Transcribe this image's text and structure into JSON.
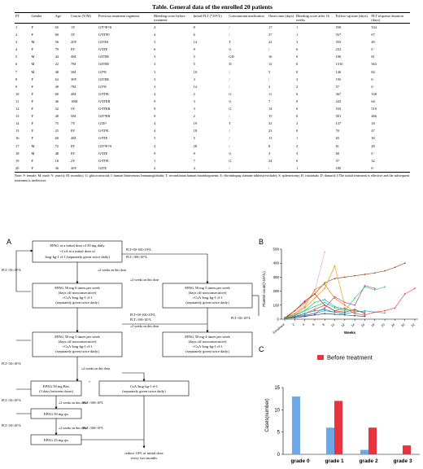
{
  "table": {
    "title": "Table. General data of the enrolled 20 patients",
    "headers": [
      "PT",
      "Gender",
      "Age",
      "Course (Y/M)",
      "Previous treatment regimens",
      "Bleeding score before treatment",
      "Initial PLT (*10⁹/L)",
      "Concomitant medication",
      "Onset time (days)",
      "Bleeding score after 16 weeks",
      "Follow-up time (days)",
      "PLT response duration (days)"
    ],
    "rows": [
      [
        "1",
        "F",
        "65",
        "1Y",
        "G²T²E²/S",
        "4",
        "8",
        "/",
        "17",
        "1",
        "550",
        "534"
      ],
      [
        "2",
        "F",
        "69",
        "3Y",
        "G²IT²E³",
        "4",
        "6",
        "/",
        "37",
        "1",
        "557",
        "67"
      ],
      [
        "3",
        "M",
        "56",
        "20Y",
        "GITES",
        "3",
        "14",
        "T",
        "22",
        "3",
        "555",
        "49"
      ],
      [
        "4",
        "F",
        "79",
        "8Y",
        "G²ITE",
        "6",
        "9",
        "G",
        "/",
        "6",
        "232",
        "0"
      ],
      [
        "5",
        "M",
        "44",
        "4M",
        "GITER",
        "3",
        "5",
        "GD",
        "16",
        "0",
        "100",
        "81"
      ],
      [
        "6",
        "M",
        "22",
        "7M",
        "GITER",
        "3",
        "5",
        "D",
        "12",
        "0",
        "1310",
        "563"
      ],
      [
        "7",
        "M",
        "48",
        "3M",
        "GT²E",
        "3",
        "10",
        "/",
        "5",
        "0",
        "140",
        "84"
      ],
      [
        "8",
        "F",
        "63",
        "30Y",
        "GITER",
        "3",
        "3",
        "/",
        "/",
        "3",
        "195",
        "0"
      ],
      [
        "9",
        "F",
        "49",
        "7M",
        "GT²E",
        "3",
        "14",
        "/",
        "3",
        "2",
        "57",
        "0"
      ],
      [
        "10",
        "F",
        "60",
        "4M",
        "G²IT²E",
        "4",
        "2",
        "G",
        "11",
        "0",
        "367",
        "338"
      ],
      [
        "11",
        "F",
        "46",
        "10M",
        "G²ITER",
        "9",
        "3",
        "G",
        "7",
        "0",
        "243",
        "64"
      ],
      [
        "12",
        "F",
        "32",
        "5Y",
        "G²ITER",
        "9",
        "3",
        "G",
        "14",
        "0",
        "535",
        "519"
      ],
      [
        "13",
        "F",
        "40",
        "5M",
        "GIT²ER",
        "9",
        "2",
        "/",
        "15",
        "0",
        "501",
        "466"
      ],
      [
        "14",
        "F",
        "75",
        "7Y",
        "GTE²",
        "4",
        "19",
        "T",
        "33",
        "3",
        "137",
        "18"
      ],
      [
        "15",
        "F",
        "25",
        "8Y",
        "G²IT³E",
        "4",
        "18",
        "/",
        "23",
        "0",
        "70",
        "47"
      ],
      [
        "16",
        "F",
        "60",
        "4M",
        "G²ITE",
        "5",
        "5",
        "/",
        "13",
        "1",
        "65",
        "30"
      ],
      [
        "17",
        "M",
        "72",
        "8Y",
        "GIT²E³/S",
        "2",
        "28",
        "/",
        "8",
        "2",
        "61",
        "28"
      ],
      [
        "18",
        "M",
        "48",
        "8Y",
        "G²ITE",
        "9",
        "9",
        "G",
        "3",
        "3",
        "60",
        "0"
      ],
      [
        "19",
        "F",
        "18",
        "2Y",
        "G²IT²E",
        "1",
        "7",
        "G",
        "24",
        "0",
        "57",
        "32"
      ],
      [
        "20",
        "F",
        "36",
        "30Y",
        "GITE",
        "2",
        "4",
        "/",
        "/",
        "1",
        "180",
        "0"
      ]
    ],
    "note": "Note: F: female; M: male; Y: year(s); M: month(s); G: glucocorticoid; I: human Intravenous Immunoglobulin; T: recombinant human thrombopoietin; E: eltrombopag olamine tablets(revolade); S: splenectomy; R: rituximab; D: danazol; I:The initial treatment is effective and the subsequent treatment is ineffective."
  },
  "panel_a": {
    "label": "A",
    "box1": [
      "EPAG at a initial dose of 50 mg daily",
      "+CsA at a initial dose of",
      "3mg·kg-1·d-1 (separately given twice daily)"
    ],
    "box2": [
      "EPAG 50 mg 6 times per week",
      "(days off nonconsecutive)",
      "+CsA 3mg·kg-1·d-1",
      "(separately given twice daily)"
    ],
    "box3": [
      "EPAG 50 mg 5 times per week",
      "(days off nonconsecutive)",
      "+CsA 3mg·kg-1·d-1",
      "(separately given twice daily)"
    ],
    "box4": [
      "EPAG 50 mg 3 times per week",
      "(days off nonconsecutive)",
      "+CsA 3mg·kg-1·d-1",
      "(separately given twice daily)"
    ],
    "box5": [
      "EPAG 50 mg 4 times per week",
      "(days off nonconsecutive)",
      "+CsA 3mg·kg-1·d-1",
      "(separately given twice daily)"
    ],
    "box6": [
      "EPAG 50 mg Biw",
      "(3 days between doses)"
    ],
    "box7": [
      "CsA 3mg·kg-1·d-1",
      "(separately given twice daily)"
    ],
    "box8": "EPAG 50 mg qw",
    "box9": "EPAG 25 mg qw",
    "final": [
      "reduce 10% of initial dose",
      "every two months"
    ],
    "plt_lt_50": "PLT<50×10⁹/L",
    "plt_50_100": "PLT=50-100×10⁹/L",
    "plt_gt_100": "PLT>100×10⁹/L",
    "plt_gt_100b": "PLT>100×10⁹L",
    "weeks_dose": "≥2 weeks on this dose",
    "plus": "+"
  },
  "panel_b": {
    "label": "B",
    "chart_data": {
      "type": "line",
      "ylabel": "Platelet count(×10⁹/L)",
      "xlabel": "Weeks",
      "x_labels": [
        "Enrolment",
        "2",
        "4",
        "6",
        "8",
        "10",
        "12",
        "14",
        "16",
        "18",
        "20",
        "24",
        "30",
        "32"
      ],
      "y_ticks": [
        "0",
        "100",
        "200",
        "300",
        "400",
        "500"
      ],
      "ylim": [
        0,
        500
      ],
      "series": [
        {
          "color": "#a0522d",
          "values": [
            10,
            60,
            120,
            180,
            260,
            290,
            300,
            310,
            320,
            330,
            345,
            370,
            400,
            null
          ]
        },
        {
          "color": "#f4a6c0",
          "values": [
            8,
            40,
            110,
            200,
            480,
            null,
            null,
            null,
            null,
            null,
            null,
            null,
            null,
            null
          ]
        },
        {
          "color": "#e74c3c",
          "values": [
            5,
            20,
            40,
            70,
            100,
            60,
            80,
            40,
            30,
            50,
            60,
            80,
            180,
            220
          ]
        },
        {
          "color": "#2ecc71",
          "values": [
            14,
            30,
            60,
            90,
            120,
            80,
            60,
            150,
            230,
            210,
            230,
            null,
            null,
            null
          ]
        },
        {
          "color": "#3498db",
          "values": [
            6,
            20,
            30,
            40,
            60,
            50,
            40,
            50,
            60,
            50,
            45,
            null,
            null,
            null
          ]
        },
        {
          "color": "#9b59b6",
          "values": [
            3,
            15,
            25,
            40,
            80,
            160,
            120,
            100,
            240,
            220,
            null,
            null,
            null,
            null
          ]
        },
        {
          "color": "#1abc9c",
          "values": [
            9,
            25,
            60,
            120,
            140,
            90,
            70,
            60,
            50,
            null,
            null,
            null,
            null,
            null
          ]
        },
        {
          "color": "#f39c12",
          "values": [
            2,
            30,
            80,
            150,
            220,
            380,
            100,
            50,
            null,
            null,
            null,
            null,
            null,
            null
          ]
        },
        {
          "color": "#34495e",
          "values": [
            5,
            10,
            20,
            30,
            40,
            35,
            30,
            25,
            20,
            null,
            null,
            null,
            null,
            null
          ]
        },
        {
          "color": "#e67e22",
          "values": [
            7,
            40,
            90,
            210,
            250,
            150,
            100,
            null,
            null,
            null,
            null,
            null,
            null,
            null
          ]
        },
        {
          "color": "#c0392b",
          "values": [
            3,
            60,
            130,
            180,
            100,
            60,
            50,
            70,
            40,
            null,
            null,
            null,
            null,
            null
          ]
        },
        {
          "color": "#16a085",
          "values": [
            4,
            20,
            40,
            60,
            70,
            50,
            40,
            null,
            null,
            null,
            null,
            null,
            null,
            null
          ]
        }
      ]
    }
  },
  "panel_c": {
    "label": "C",
    "chart_data": {
      "type": "bar",
      "ylabel": "Cases(number)",
      "categories": [
        "grade 0",
        "grade 1",
        "grade 2",
        "grade 3"
      ],
      "y_ticks": [
        "0",
        "5",
        "10",
        "15"
      ],
      "ylim": [
        0,
        15
      ],
      "series": [
        {
          "name": "",
          "color": "#6aa8e8",
          "values": [
            13,
            6,
            1,
            0
          ]
        },
        {
          "name": "Before treatment",
          "color": "#e8343e",
          "values": [
            0,
            12,
            6,
            2
          ]
        }
      ]
    }
  }
}
